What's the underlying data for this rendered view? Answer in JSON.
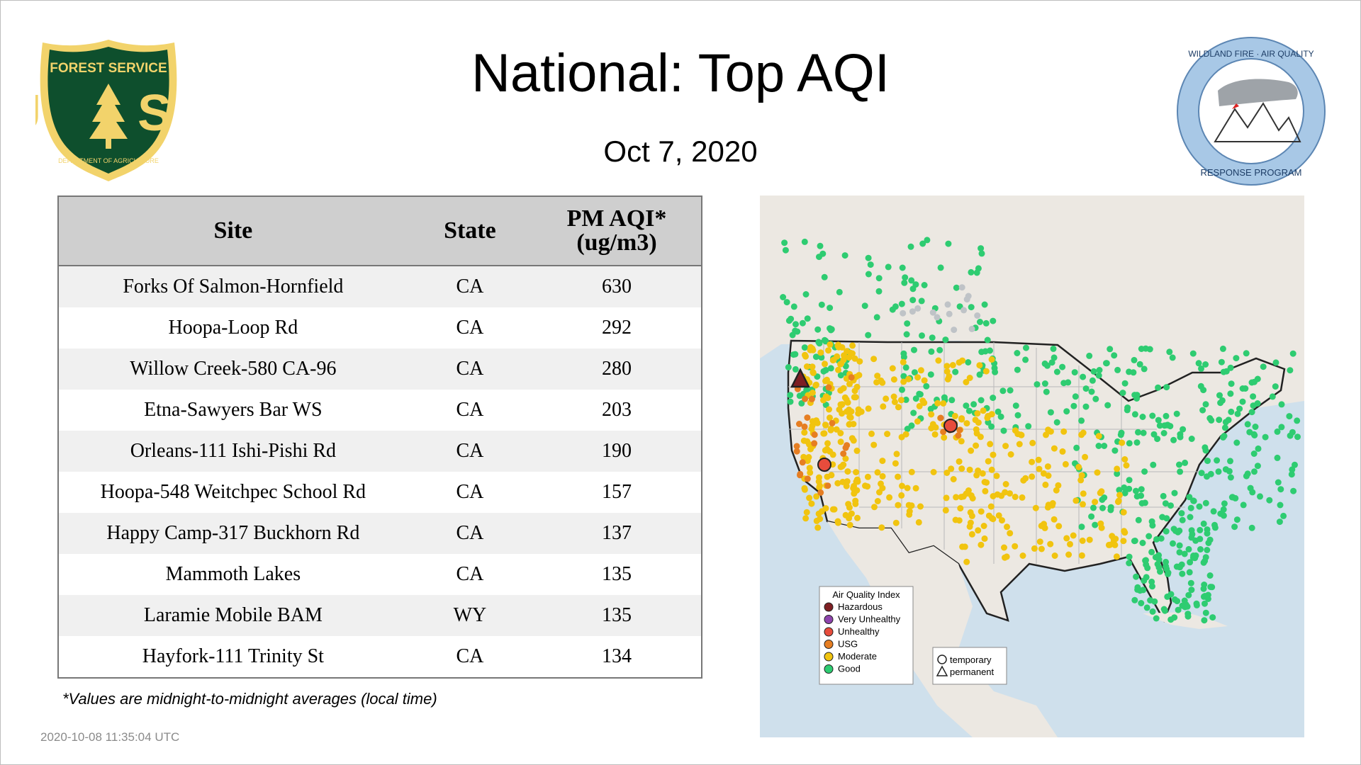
{
  "header": {
    "title": "National: Top AQI",
    "date": "Oct  7, 2020"
  },
  "logos": {
    "usfs": {
      "icon": "forest-service-shield-logo",
      "top_text": "FOREST SERVICE",
      "letters": "U S",
      "bottom_text": "DEPARTMENT OF AGRICULTURE"
    },
    "wfaq": {
      "icon": "wildland-fire-air-quality-logo",
      "top_text": "WILDLAND FIRE · AIR QUALITY",
      "bottom_text": "RESPONSE PROGRAM"
    }
  },
  "table": {
    "columns": {
      "site": "Site",
      "state": "State",
      "value_line1": "PM AQI*",
      "value_line2": "(ug/m3)"
    },
    "rows": [
      {
        "site": "Forks Of Salmon-Hornfield",
        "state": "CA",
        "value": "630"
      },
      {
        "site": "Hoopa-Loop Rd",
        "state": "CA",
        "value": "292"
      },
      {
        "site": "Willow Creek-580 CA-96",
        "state": "CA",
        "value": "280"
      },
      {
        "site": "Etna-Sawyers Bar WS",
        "state": "CA",
        "value": "203"
      },
      {
        "site": "Orleans-111 Ishi-Pishi Rd",
        "state": "CA",
        "value": "190"
      },
      {
        "site": "Hoopa-548 Weitchpec School Rd",
        "state": "CA",
        "value": "157"
      },
      {
        "site": "Happy Camp-317 Buckhorn Rd",
        "state": "CA",
        "value": "137"
      },
      {
        "site": "Mammoth Lakes",
        "state": "CA",
        "value": "135"
      },
      {
        "site": "Laramie Mobile BAM",
        "state": "WY",
        "value": "135"
      },
      {
        "site": "Hayfork-111 Trinity St",
        "state": "CA",
        "value": "134"
      }
    ]
  },
  "footnote": "*Values are midnight-to-midnight averages (local time)",
  "timestamp": "2020-10-08 11:35:04 UTC",
  "map": {
    "legend": {
      "title": "Air Quality Index",
      "items": [
        {
          "label": "Hazardous",
          "color": "#7e1f23"
        },
        {
          "label": "Very Unhealthy",
          "color": "#8e44ad"
        },
        {
          "label": "Unhealthy",
          "color": "#e74c3c"
        },
        {
          "label": "USG",
          "color": "#e67e22"
        },
        {
          "label": "Moderate",
          "color": "#f1c40f"
        },
        {
          "label": "Good",
          "color": "#2ecc71"
        }
      ]
    },
    "shape_legend": {
      "temporary": "temporary",
      "permanent": "permanent"
    },
    "colors": {
      "ocean": "#cfe0ec",
      "land": "#ece8e2",
      "good": "#2ecc71",
      "moderate": "#f1c40f",
      "usg": "#e67e22",
      "unhealthy": "#e74c3c",
      "hazardous": "#7e1f23",
      "no_data": "#bfc3c7"
    }
  }
}
